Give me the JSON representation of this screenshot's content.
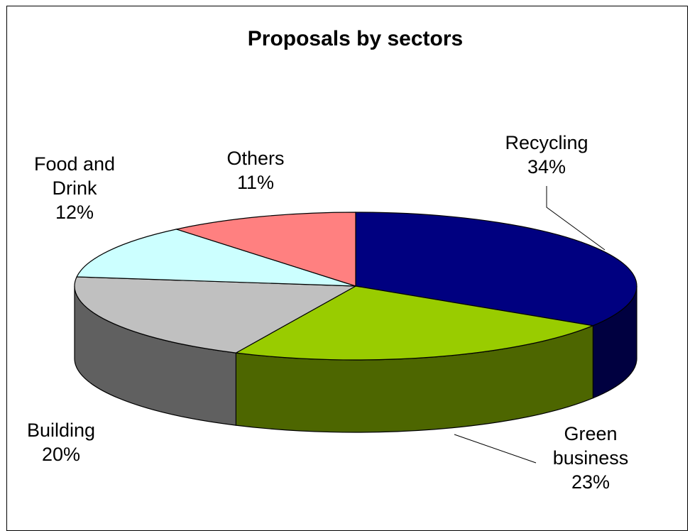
{
  "chart_data": {
    "type": "pie",
    "title": "Proposals by sectors",
    "three_d": true,
    "slices": [
      {
        "label_lines": [
          "Recycling"
        ],
        "percent_label": "34%",
        "value": 34,
        "color": "#000080",
        "side_color": "#000040"
      },
      {
        "label_lines": [
          "Green",
          "business"
        ],
        "percent_label": "23%",
        "value": 23,
        "color": "#99CC00",
        "side_color": "#4D6600"
      },
      {
        "label_lines": [
          "Building"
        ],
        "percent_label": "20%",
        "value": 20,
        "color": "#C0C0C0",
        "side_color": "#606060"
      },
      {
        "label_lines": [
          "Food and",
          "Drink"
        ],
        "percent_label": "12%",
        "value": 12,
        "color": "#CCFFFF",
        "side_color": "#668080"
      },
      {
        "label_lines": [
          "Others"
        ],
        "percent_label": "11%",
        "value": 11,
        "color": "#FF8080",
        "side_color": "#804040"
      }
    ]
  }
}
